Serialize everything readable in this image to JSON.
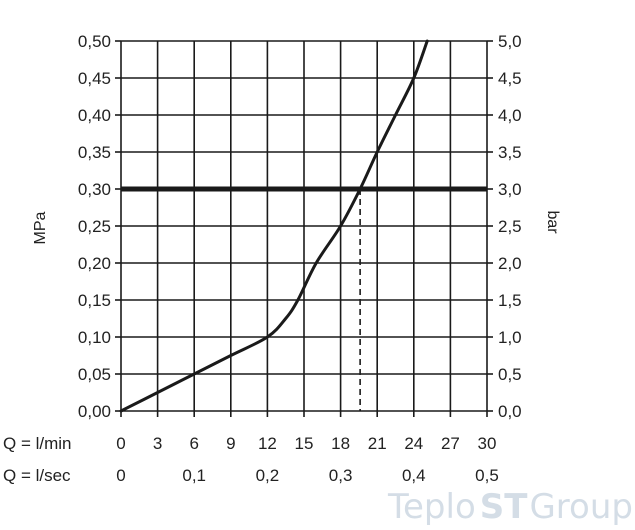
{
  "chart_data": {
    "type": "line",
    "ylabel_left": "MPa",
    "ylabel_right": "bar",
    "x_row_label_lmin": "Q = l/min",
    "x_row_label_lsec": "Q = l/sec",
    "xlim": [
      0,
      30
    ],
    "ylim": [
      0,
      0.5
    ],
    "y_ticks_left": [
      "0,50",
      "0,45",
      "0,40",
      "0,35",
      "0,30",
      "0,25",
      "0,20",
      "0,15",
      "0,10",
      "0,05",
      "0,00"
    ],
    "y_ticks_right": [
      "5,0",
      "4,5",
      "4,0",
      "3,5",
      "3,0",
      "2,5",
      "2,0",
      "1,5",
      "1,0",
      "0,5",
      "0,0"
    ],
    "x_ticks_lmin": [
      "0",
      "3",
      "6",
      "9",
      "12",
      "15",
      "18",
      "21",
      "24",
      "27",
      "30"
    ],
    "x_ticks_lsec": [
      {
        "value": 0,
        "label": "0"
      },
      {
        "value": 6,
        "label": "0,1"
      },
      {
        "value": 12,
        "label": "0,2"
      },
      {
        "value": 18,
        "label": "0,3"
      },
      {
        "value": 24,
        "label": "0,4"
      },
      {
        "value": 30,
        "label": "0,5"
      }
    ],
    "grid": true,
    "series": [
      {
        "values_x": [
          0,
          3,
          6,
          9,
          12,
          13.5,
          14.5,
          16,
          18,
          19.6,
          21,
          22.5,
          24,
          25.1
        ],
        "values_y": [
          0,
          0.025,
          0.05,
          0.075,
          0.1,
          0.125,
          0.15,
          0.2,
          0.25,
          0.3,
          0.35,
          0.4,
          0.45,
          0.5
        ]
      }
    ],
    "reference_line_y": 0.3,
    "reference_drop_x": 19.6,
    "colors": {
      "line": "#1a1a1a",
      "grid": "#1a1a1a",
      "watermark": "#d4dde6"
    }
  },
  "watermark": {
    "part1": "Teplo",
    "part2": "ST",
    "part3": "Group"
  }
}
